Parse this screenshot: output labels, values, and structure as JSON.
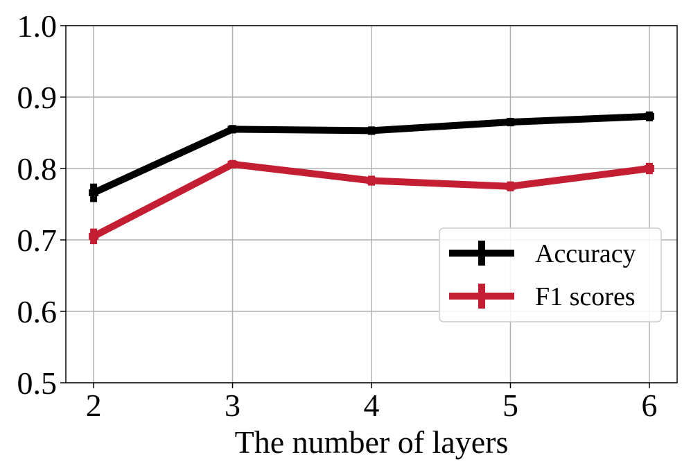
{
  "chart_data": {
    "type": "line",
    "x": [
      2,
      3,
      4,
      5,
      6
    ],
    "xlabel": "The number of layers",
    "ylabel": "",
    "xlim": [
      1.8,
      6.2
    ],
    "ylim": [
      0.5,
      1.0
    ],
    "xticks": [
      "2",
      "3",
      "4",
      "5",
      "6"
    ],
    "yticks": [
      "0.5",
      "0.6",
      "0.7",
      "0.8",
      "0.9",
      "1.0"
    ],
    "grid": true,
    "legend_position": "center-right",
    "series": [
      {
        "name": "Accuracy",
        "color": "#000000",
        "values": [
          0.766,
          0.855,
          0.853,
          0.865,
          0.873
        ],
        "errors": [
          0.01,
          0.003,
          0.003,
          0.003,
          0.004
        ]
      },
      {
        "name": "F1 scores",
        "color": "#c41e32",
        "values": [
          0.705,
          0.806,
          0.783,
          0.775,
          0.8
        ],
        "errors": [
          0.008,
          0.003,
          0.004,
          0.004,
          0.005
        ]
      }
    ]
  }
}
